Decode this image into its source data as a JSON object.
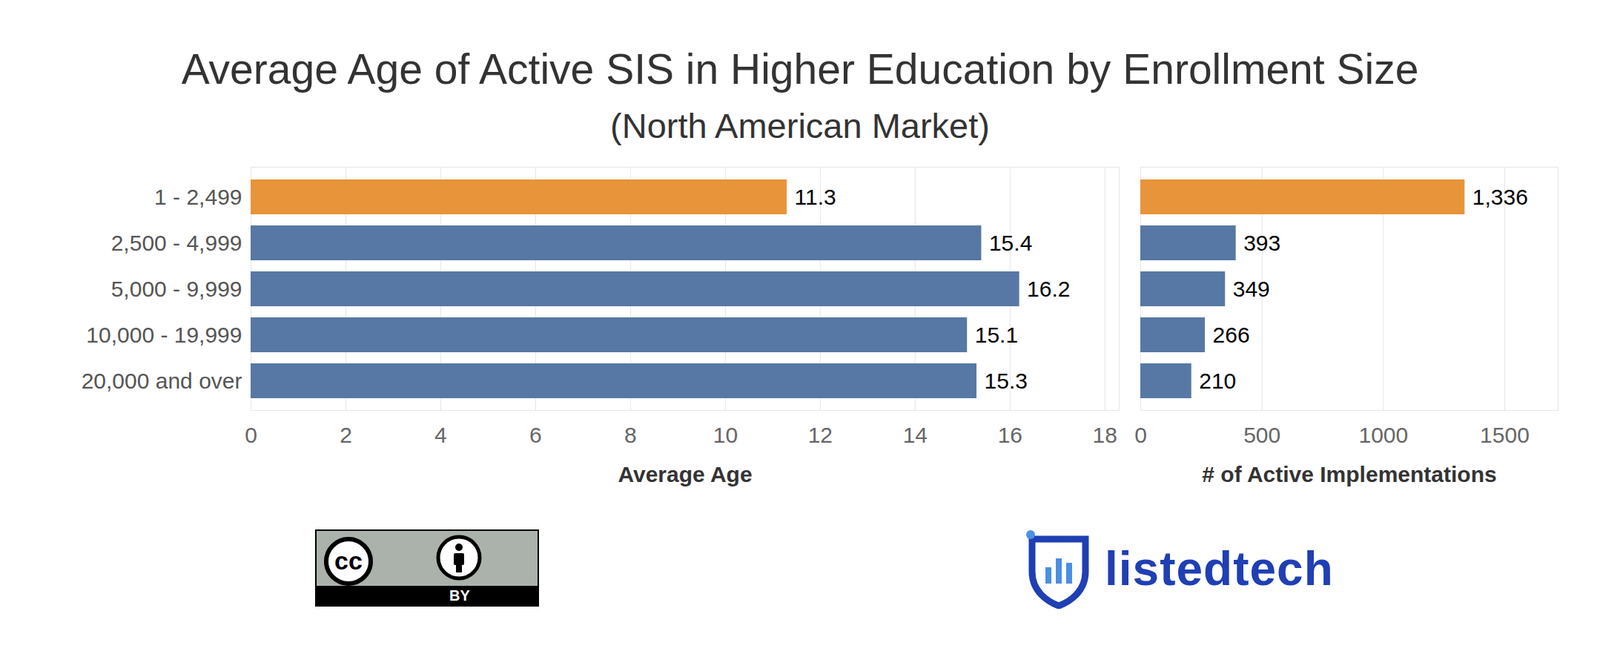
{
  "chart_data": [
    {
      "type": "bar",
      "title": "Average Age of Active SIS in Higher Education by Enrollment Size",
      "subtitle": "(North American Market)",
      "orientation": "horizontal",
      "categories": [
        "1 - 2,499",
        "2,500 - 4,999",
        "5,000 - 9,999",
        "10,000 - 19,999",
        "20,000 and over"
      ],
      "values": [
        11.3,
        15.4,
        16.2,
        15.1,
        15.3
      ],
      "colors": [
        "#e8943a",
        "#5778a4",
        "#5778a4",
        "#5778a4",
        "#5778a4"
      ],
      "xlabel": "Average Age",
      "xlim": [
        0,
        18.3
      ],
      "xticks": [
        0,
        2,
        4,
        6,
        8,
        10,
        12,
        14,
        16,
        18
      ],
      "grid": true,
      "data_labels": true
    },
    {
      "type": "bar",
      "orientation": "horizontal",
      "categories": [
        "1 - 2,499",
        "2,500 - 4,999",
        "5,000 - 9,999",
        "10,000 - 19,999",
        "20,000 and over"
      ],
      "values": [
        1336,
        393,
        349,
        266,
        210
      ],
      "value_labels": [
        "1,336",
        "393",
        "349",
        "266",
        "210"
      ],
      "colors": [
        "#e8943a",
        "#5778a4",
        "#5778a4",
        "#5778a4",
        "#5778a4"
      ],
      "xlabel": "# of Active Implementations",
      "xlim": [
        0,
        1720
      ],
      "xticks": [
        0,
        500,
        1000,
        1500
      ],
      "grid": true,
      "data_labels": true,
      "tick_labels": "x"
    }
  ],
  "license": [
    "cc",
    "BY"
  ],
  "source": "listedtech"
}
